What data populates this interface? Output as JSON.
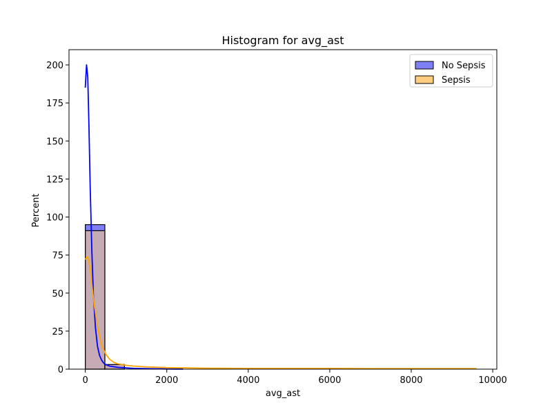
{
  "chart_data": {
    "type": "bar",
    "title": "Histogram for avg_ast",
    "xlabel": "avg_ast",
    "ylabel": "Percent",
    "xlim": [
      -400,
      10100
    ],
    "ylim": [
      0,
      210
    ],
    "xticks": [
      0,
      2000,
      4000,
      6000,
      8000,
      10000
    ],
    "yticks": [
      0,
      25,
      50,
      75,
      100,
      125,
      150,
      175,
      200
    ],
    "legend_position": "top-right",
    "bin_edges": [
      0,
      480,
      960
    ],
    "series": [
      {
        "name": "No Sepsis",
        "color": "#0000ff",
        "bar_fill": "#7f7ff5",
        "bars": [
          95,
          3
        ],
        "kde": {
          "x": [
            0,
            30,
            60,
            90,
            120,
            160,
            200,
            250,
            300,
            350,
            400,
            450,
            500,
            600,
            700,
            800,
            1000,
            1200,
            1500,
            2000,
            2400
          ],
          "y": [
            185,
            200,
            192,
            160,
            120,
            78,
            48,
            27,
            15,
            9,
            6,
            4,
            3,
            2,
            1.6,
            1.2,
            0.8,
            0.5,
            0.3,
            0.15,
            0.05
          ]
        }
      },
      {
        "name": "Sepsis",
        "color": "#ffa500",
        "bar_fill": "#ffcf7f",
        "bars": [
          91,
          3
        ],
        "kde": {
          "x": [
            0,
            40,
            80,
            120,
            160,
            220,
            300,
            400,
            500,
            600,
            700,
            800,
            1000,
            1200,
            1500,
            2000,
            2500,
            3000,
            4000,
            5000,
            6000,
            7000,
            8000,
            9000,
            9600
          ],
          "y": [
            72,
            74,
            72,
            66,
            56,
            42,
            28,
            16,
            10,
            6.5,
            4.5,
            3.5,
            2.5,
            2,
            1.5,
            1,
            0.8,
            0.6,
            0.5,
            0.5,
            0.5,
            0.4,
            0.4,
            0.4,
            0.4
          ]
        }
      }
    ]
  }
}
